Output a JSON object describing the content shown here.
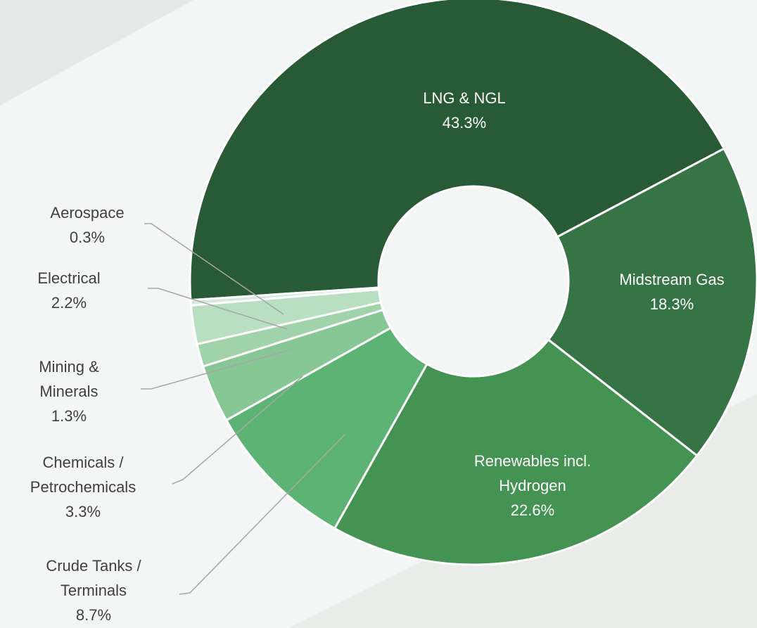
{
  "chart_data": {
    "type": "donut",
    "categories": [
      "LNG & NGL",
      "Midstream Gas",
      "Renewables incl.\nHydrogen",
      "Crude Tanks /\nTerminals",
      "Chemicals /\nPetrochemicals",
      "Mining &\nMinerals",
      "Electrical",
      "Aerospace"
    ],
    "values": [
      43.3,
      18.3,
      22.6,
      8.7,
      3.3,
      1.3,
      2.2,
      0.3
    ],
    "value_labels": [
      "43.3%",
      "18.3%",
      "22.6%",
      "8.7%",
      "3.3%",
      "1.3%",
      "2.2%",
      "0.3%"
    ],
    "colors": [
      "#285a35",
      "#367446",
      "#449353",
      "#5db374",
      "#87c796",
      "#a0d3aa",
      "#b9dfc2",
      "#d3ead8"
    ]
  }
}
